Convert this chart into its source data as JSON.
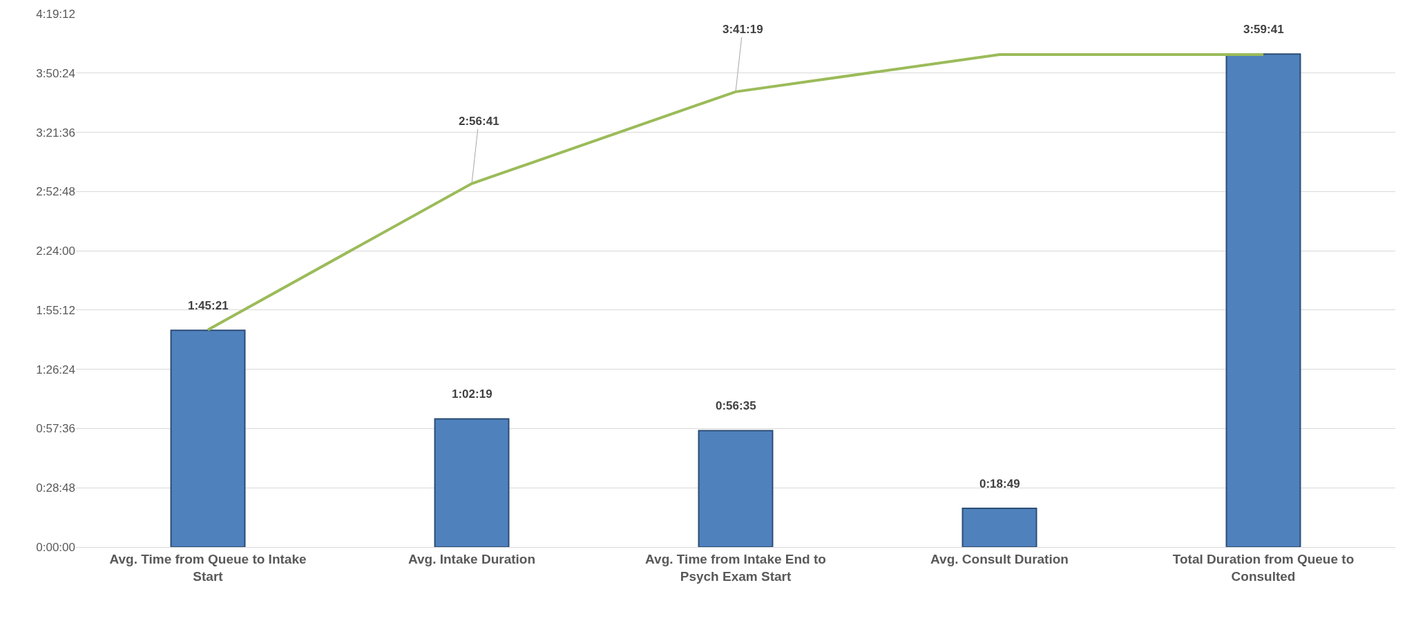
{
  "chart_data": {
    "type": "bar",
    "categories": [
      "Avg. Time from Queue to Intake Start",
      "Avg. Intake Duration",
      "Avg. Time from Intake End to Psych Exam Start",
      "Avg. Consult Duration",
      "Total Duration from Queue to Consulted"
    ],
    "series": [
      {
        "color": "#4f81bd",
        "values": [
          1.755833,
          1.038611,
          0.943056,
          0.313611,
          3.994722
        ],
        "value_labels": [
          "1:45:21",
          "1:02:19",
          "0:56:35",
          "0:18:49",
          "3:59:41"
        ]
      },
      {
        "type": "line",
        "color": "#9bbb59",
        "values": [
          1.76,
          2.944722,
          3.688611,
          3.99,
          3.99
        ],
        "value_labels": [
          null,
          "2:56:41",
          "3:41:19",
          null,
          null
        ]
      }
    ],
    "ylim": [
      0,
      4.32
    ],
    "yticks": [
      {
        "value": 0,
        "label": "0:00:00"
      },
      {
        "value": 0.48,
        "label": "0:28:48"
      },
      {
        "value": 0.96,
        "label": "0:57:36"
      },
      {
        "value": 1.44,
        "label": "1:26:24"
      },
      {
        "value": 1.92,
        "label": "1:55:12"
      },
      {
        "value": 2.4,
        "label": "2:24:00"
      },
      {
        "value": 2.88,
        "label": "2:52:48"
      },
      {
        "value": 3.36,
        "label": "3:21:36"
      },
      {
        "value": 3.84,
        "label": "3:50:24"
      },
      {
        "value": 4.32,
        "label": "4:19:12"
      }
    ],
    "grid": "y",
    "marker": "none",
    "line_style": "solid"
  }
}
